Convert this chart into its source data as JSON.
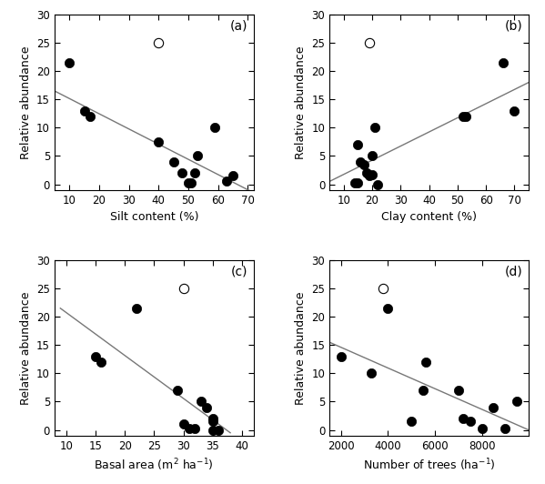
{
  "panels": [
    {
      "label": "(a)",
      "xlabel": "Silt content (%)",
      "xlim": [
        5,
        72
      ],
      "xticks": [
        10,
        20,
        30,
        40,
        50,
        60,
        70
      ],
      "filled_x": [
        10,
        15,
        17,
        40,
        45,
        48,
        50,
        51,
        52,
        53,
        59,
        63,
        65
      ],
      "filled_y": [
        21.5,
        13,
        12,
        7.5,
        4,
        2,
        0.3,
        0.3,
        2,
        5,
        10,
        0.5,
        1.5
      ],
      "open_x": [
        40
      ],
      "open_y": [
        25
      ],
      "line_x": [
        5,
        72
      ],
      "line_y": [
        16.5,
        -1.5
      ]
    },
    {
      "label": "(b)",
      "xlabel": "Clay content (%)",
      "xlim": [
        5,
        75
      ],
      "xticks": [
        10,
        20,
        30,
        40,
        50,
        60,
        70
      ],
      "filled_x": [
        14,
        15,
        15,
        16,
        17,
        18,
        19,
        20,
        20,
        21,
        22,
        52,
        53,
        66,
        70
      ],
      "filled_y": [
        0.3,
        0.3,
        7,
        4,
        3.5,
        2,
        1.5,
        5,
        1.7,
        10,
        0,
        12,
        12,
        21.5,
        13
      ],
      "open_x": [
        19
      ],
      "open_y": [
        25
      ],
      "line_x": [
        5,
        75
      ],
      "line_y": [
        0.5,
        18
      ]
    },
    {
      "label": "(c)",
      "xlabel": "Basal area (m$^2$ ha$^{-1}$)",
      "xlim": [
        8,
        42
      ],
      "xticks": [
        10,
        15,
        20,
        25,
        30,
        35,
        40
      ],
      "filled_x": [
        15,
        16,
        22,
        29,
        30,
        31,
        32,
        33,
        34,
        35,
        35,
        35,
        36
      ],
      "filled_y": [
        13,
        12,
        21.5,
        7,
        1,
        0.3,
        0.3,
        5,
        4,
        2,
        1.5,
        0,
        0
      ],
      "open_x": [
        30
      ],
      "open_y": [
        25
      ],
      "line_x": [
        9,
        38
      ],
      "line_y": [
        21.5,
        -0.5
      ]
    },
    {
      "label": "(d)",
      "xlabel": "Number of trees (ha$^{-1}$)",
      "xlim": [
        1500,
        10000
      ],
      "xticks": [
        2000,
        4000,
        6000,
        8000
      ],
      "filled_x": [
        2000,
        3300,
        4000,
        5000,
        5500,
        5600,
        7000,
        7200,
        7500,
        8000,
        8500,
        9000,
        9500
      ],
      "filled_y": [
        13,
        10,
        21.5,
        1.5,
        7,
        12,
        7,
        2,
        1.5,
        0.3,
        4,
        0.3,
        5
      ],
      "open_x": [
        3800
      ],
      "open_y": [
        25
      ],
      "line_x": [
        1500,
        10000
      ],
      "line_y": [
        15.5,
        0
      ]
    }
  ],
  "ylim": [
    -1,
    30
  ],
  "yticks": [
    0,
    5,
    10,
    15,
    20,
    25,
    30
  ],
  "ylabel": "Relative abundance",
  "line_color": "#777777",
  "filled_color": "black",
  "open_color": "white",
  "marker_size": 55,
  "line_width": 1.0
}
